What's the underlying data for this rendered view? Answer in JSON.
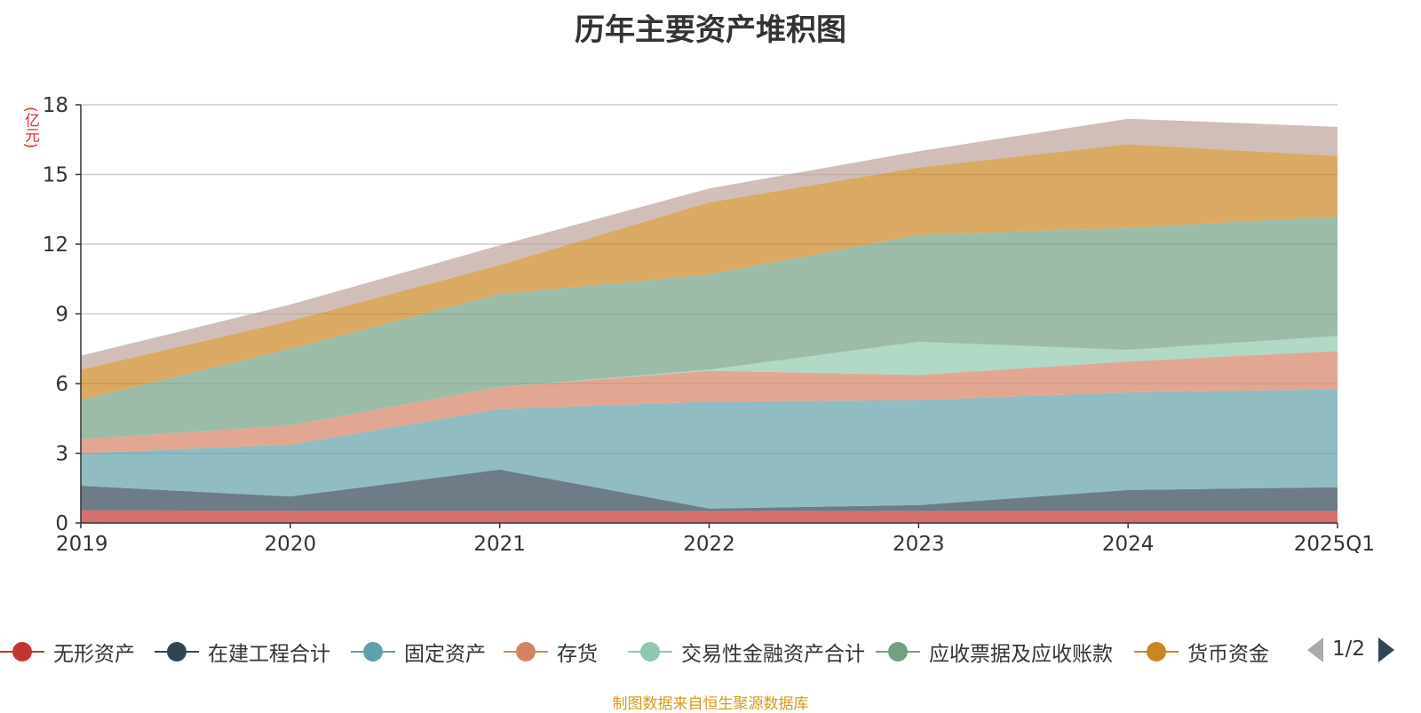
{
  "chart_data": {
    "type": "area",
    "stacked": true,
    "title": "历年主要资产堆积图",
    "ylabel": "(亿元)",
    "xlabel": "",
    "categories": [
      "2019",
      "2020",
      "2021",
      "2022",
      "2023",
      "2024",
      "2025Q1"
    ],
    "ylim": [
      0,
      18
    ],
    "yticks": [
      "0",
      "3",
      "6",
      "9",
      "12",
      "15",
      "18"
    ],
    "grid": true,
    "legend_position": "bottom",
    "series": [
      {
        "name": "无形资产",
        "color": "#c23531",
        "values": [
          0.55,
          0.52,
          0.52,
          0.52,
          0.52,
          0.52,
          0.52
        ]
      },
      {
        "name": "在建工程合计",
        "color": "#2f4554",
        "values": [
          1.05,
          0.62,
          1.78,
          0.1,
          0.25,
          0.9,
          1.02
        ]
      },
      {
        "name": "固定资产",
        "color": "#61a0a8",
        "values": [
          1.4,
          2.23,
          2.6,
          4.6,
          4.52,
          4.2,
          4.21
        ]
      },
      {
        "name": "存货",
        "color": "#d48265",
        "values": [
          0.6,
          0.83,
          0.95,
          1.33,
          1.08,
          1.33,
          1.65
        ]
      },
      {
        "name": "交易性金融资产合计",
        "color": "#91c7ae",
        "values": [
          0.0,
          0.0,
          0.0,
          0.05,
          1.43,
          0.5,
          0.65
        ]
      },
      {
        "name": "应收票据及应收账款",
        "color": "#749f83",
        "values": [
          1.7,
          3.3,
          4.0,
          4.1,
          4.6,
          5.25,
          5.15
        ]
      },
      {
        "name": "货币资金",
        "color": "#ca8622",
        "values": [
          1.3,
          1.2,
          1.25,
          3.1,
          2.9,
          3.6,
          2.6
        ]
      },
      {
        "name": "",
        "color": "#bda29a",
        "values": [
          0.6,
          0.7,
          0.85,
          0.6,
          0.7,
          1.1,
          1.25
        ]
      }
    ]
  },
  "legend": {
    "page_text": "1/2"
  },
  "source_text": "制图数据来自恒生聚源数据库"
}
